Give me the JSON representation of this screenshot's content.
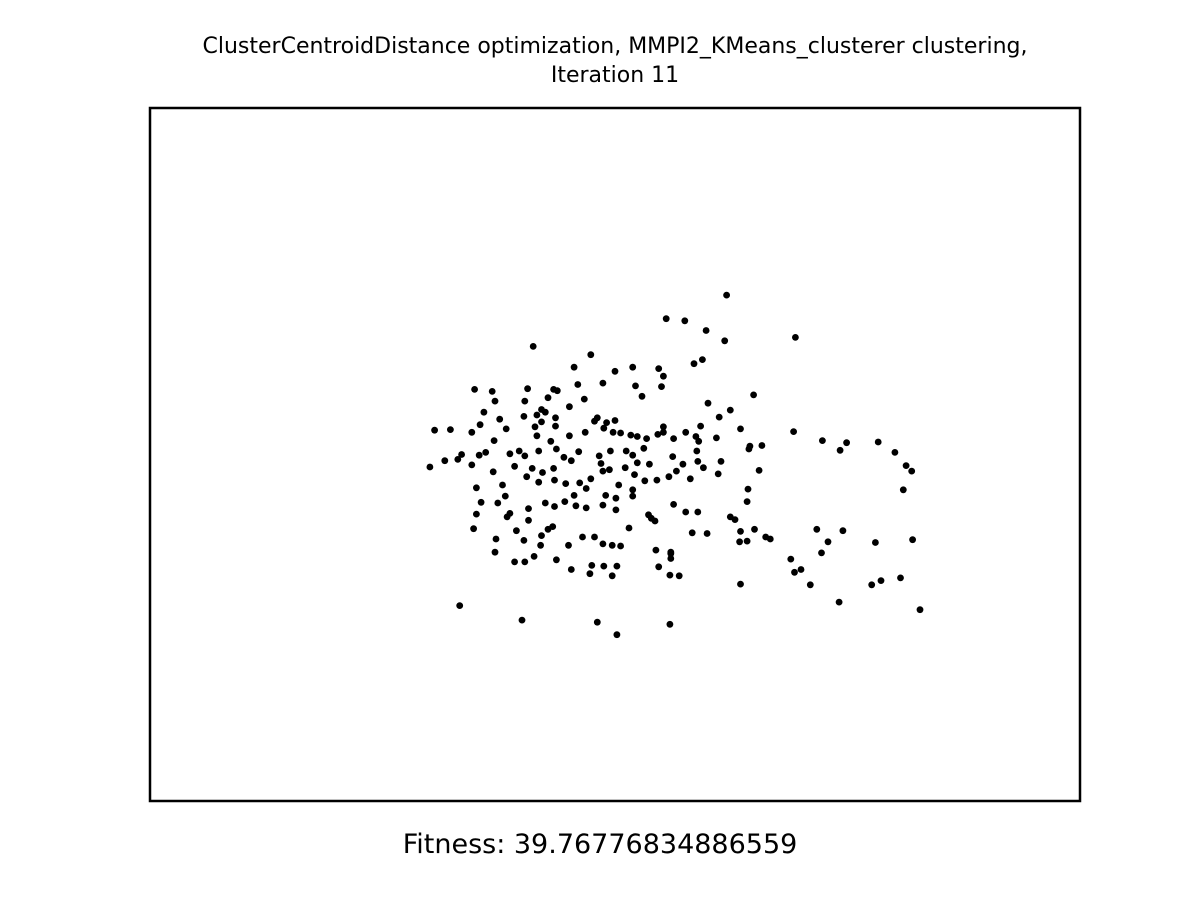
{
  "chart_data": {
    "type": "scatter",
    "title": "ClusterCentroidDistance optimization, MMPI2_KMeans_clusterer clustering,\nIteration 11",
    "xlabel": "",
    "ylabel": "",
    "grid": false,
    "axes_ticks": false,
    "footer": "Fitness: 39.76776834886559",
    "marker_color": "#000000",
    "xlim": [
      0,
      1
    ],
    "ylim": [
      0,
      1
    ],
    "points": [
      [
        0.62,
        0.73
      ],
      [
        0.555,
        0.696
      ],
      [
        0.575,
        0.693
      ],
      [
        0.694,
        0.669
      ],
      [
        0.412,
        0.656
      ],
      [
        0.598,
        0.679
      ],
      [
        0.618,
        0.664
      ],
      [
        0.594,
        0.637
      ],
      [
        0.474,
        0.644
      ],
      [
        0.585,
        0.631
      ],
      [
        0.552,
        0.613
      ],
      [
        0.519,
        0.626
      ],
      [
        0.547,
        0.624
      ],
      [
        0.487,
        0.603
      ],
      [
        0.5,
        0.62
      ],
      [
        0.456,
        0.626
      ],
      [
        0.522,
        0.599
      ],
      [
        0.438,
        0.592
      ],
      [
        0.434,
        0.594
      ],
      [
        0.46,
        0.601
      ],
      [
        0.368,
        0.591
      ],
      [
        0.349,
        0.594
      ],
      [
        0.371,
        0.577
      ],
      [
        0.406,
        0.595
      ],
      [
        0.403,
        0.577
      ],
      [
        0.428,
        0.582
      ],
      [
        0.451,
        0.569
      ],
      [
        0.467,
        0.58
      ],
      [
        0.55,
        0.598
      ],
      [
        0.529,
        0.584
      ],
      [
        0.649,
        0.586
      ],
      [
        0.624,
        0.564
      ],
      [
        0.6,
        0.574
      ],
      [
        0.612,
        0.554
      ],
      [
        0.592,
        0.541
      ],
      [
        0.635,
        0.537
      ],
      [
        0.587,
        0.526
      ],
      [
        0.552,
        0.54
      ],
      [
        0.5,
        0.549
      ],
      [
        0.491,
        0.546
      ],
      [
        0.481,
        0.553
      ],
      [
        0.436,
        0.553
      ],
      [
        0.421,
        0.565
      ],
      [
        0.416,
        0.557
      ],
      [
        0.425,
        0.561
      ],
      [
        0.421,
        0.547
      ],
      [
        0.414,
        0.54
      ],
      [
        0.402,
        0.555
      ],
      [
        0.383,
        0.537
      ],
      [
        0.376,
        0.551
      ],
      [
        0.359,
        0.561
      ],
      [
        0.346,
        0.532
      ],
      [
        0.323,
        0.536
      ],
      [
        0.306,
        0.535
      ],
      [
        0.355,
        0.543
      ],
      [
        0.37,
        0.52
      ],
      [
        0.416,
        0.527
      ],
      [
        0.431,
        0.519
      ],
      [
        0.436,
        0.541
      ],
      [
        0.451,
        0.527
      ],
      [
        0.468,
        0.532
      ],
      [
        0.478,
        0.548
      ],
      [
        0.488,
        0.538
      ],
      [
        0.498,
        0.532
      ],
      [
        0.506,
        0.531
      ],
      [
        0.517,
        0.528
      ],
      [
        0.524,
        0.526
      ],
      [
        0.534,
        0.523
      ],
      [
        0.546,
        0.529
      ],
      [
        0.552,
        0.532
      ],
      [
        0.563,
        0.523
      ],
      [
        0.576,
        0.532
      ],
      [
        0.59,
        0.519
      ],
      [
        0.609,
        0.524
      ],
      [
        0.645,
        0.512
      ],
      [
        0.658,
        0.513
      ],
      [
        0.644,
        0.508
      ],
      [
        0.692,
        0.533
      ],
      [
        0.723,
        0.52
      ],
      [
        0.749,
        0.517
      ],
      [
        0.783,
        0.518
      ],
      [
        0.801,
        0.503
      ],
      [
        0.588,
        0.505
      ],
      [
        0.562,
        0.497
      ],
      [
        0.531,
        0.509
      ],
      [
        0.519,
        0.499
      ],
      [
        0.512,
        0.505
      ],
      [
        0.495,
        0.505
      ],
      [
        0.483,
        0.498
      ],
      [
        0.461,
        0.504
      ],
      [
        0.445,
        0.496
      ],
      [
        0.437,
        0.508
      ],
      [
        0.418,
        0.505
      ],
      [
        0.403,
        0.498
      ],
      [
        0.397,
        0.505
      ],
      [
        0.387,
        0.501
      ],
      [
        0.361,
        0.503
      ],
      [
        0.354,
        0.499
      ],
      [
        0.335,
        0.5
      ],
      [
        0.317,
        0.491
      ],
      [
        0.346,
        0.485
      ],
      [
        0.369,
        0.475
      ],
      [
        0.392,
        0.483
      ],
      [
        0.411,
        0.48
      ],
      [
        0.422,
        0.474
      ],
      [
        0.434,
        0.48
      ],
      [
        0.453,
        0.491
      ],
      [
        0.485,
        0.487
      ],
      [
        0.494,
        0.478
      ],
      [
        0.511,
        0.481
      ],
      [
        0.524,
        0.488
      ],
      [
        0.537,
        0.486
      ],
      [
        0.573,
        0.486
      ],
      [
        0.589,
        0.49
      ],
      [
        0.614,
        0.49
      ],
      [
        0.611,
        0.472
      ],
      [
        0.655,
        0.477
      ],
      [
        0.643,
        0.45
      ],
      [
        0.742,
        0.506
      ],
      [
        0.813,
        0.484
      ],
      [
        0.819,
        0.476
      ],
      [
        0.81,
        0.449
      ],
      [
        0.301,
        0.482
      ],
      [
        0.331,
        0.493
      ],
      [
        0.351,
        0.452
      ],
      [
        0.379,
        0.456
      ],
      [
        0.405,
        0.468
      ],
      [
        0.418,
        0.46
      ],
      [
        0.435,
        0.463
      ],
      [
        0.447,
        0.458
      ],
      [
        0.462,
        0.459
      ],
      [
        0.474,
        0.465
      ],
      [
        0.487,
        0.476
      ],
      [
        0.504,
        0.456
      ],
      [
        0.521,
        0.471
      ],
      [
        0.532,
        0.462
      ],
      [
        0.545,
        0.463
      ],
      [
        0.558,
        0.468
      ],
      [
        0.566,
        0.476
      ],
      [
        0.581,
        0.465
      ],
      [
        0.595,
        0.481
      ],
      [
        0.519,
        0.449
      ],
      [
        0.456,
        0.441
      ],
      [
        0.469,
        0.451
      ],
      [
        0.49,
        0.441
      ],
      [
        0.501,
        0.437
      ],
      [
        0.374,
        0.43
      ],
      [
        0.382,
        0.44
      ],
      [
        0.387,
        0.415
      ],
      [
        0.407,
        0.422
      ],
      [
        0.425,
        0.43
      ],
      [
        0.435,
        0.425
      ],
      [
        0.446,
        0.432
      ],
      [
        0.458,
        0.426
      ],
      [
        0.469,
        0.423
      ],
      [
        0.487,
        0.427
      ],
      [
        0.501,
        0.42
      ],
      [
        0.519,
        0.44
      ],
      [
        0.536,
        0.413
      ],
      [
        0.539,
        0.408
      ],
      [
        0.543,
        0.404
      ],
      [
        0.563,
        0.428
      ],
      [
        0.576,
        0.417
      ],
      [
        0.589,
        0.417
      ],
      [
        0.433,
        0.396
      ],
      [
        0.407,
        0.405
      ],
      [
        0.384,
        0.41
      ],
      [
        0.394,
        0.39
      ],
      [
        0.372,
        0.378
      ],
      [
        0.402,
        0.376
      ],
      [
        0.421,
        0.383
      ],
      [
        0.428,
        0.392
      ],
      [
        0.42,
        0.369
      ],
      [
        0.45,
        0.369
      ],
      [
        0.465,
        0.381
      ],
      [
        0.478,
        0.381
      ],
      [
        0.487,
        0.371
      ],
      [
        0.497,
        0.369
      ],
      [
        0.506,
        0.368
      ],
      [
        0.544,
        0.362
      ],
      [
        0.56,
        0.357
      ],
      [
        0.56,
        0.35
      ],
      [
        0.583,
        0.387
      ],
      [
        0.599,
        0.386
      ],
      [
        0.351,
        0.414
      ],
      [
        0.356,
        0.431
      ],
      [
        0.348,
        0.393
      ],
      [
        0.371,
        0.359
      ],
      [
        0.392,
        0.345
      ],
      [
        0.403,
        0.345
      ],
      [
        0.413,
        0.353
      ],
      [
        0.437,
        0.348
      ],
      [
        0.453,
        0.334
      ],
      [
        0.475,
        0.34
      ],
      [
        0.488,
        0.339
      ],
      [
        0.473,
        0.328
      ],
      [
        0.497,
        0.325
      ],
      [
        0.502,
        0.339
      ],
      [
        0.515,
        0.394
      ],
      [
        0.559,
        0.326
      ],
      [
        0.56,
        0.359
      ],
      [
        0.547,
        0.338
      ],
      [
        0.569,
        0.325
      ],
      [
        0.634,
        0.374
      ],
      [
        0.642,
        0.375
      ],
      [
        0.662,
        0.381
      ],
      [
        0.717,
        0.392
      ],
      [
        0.745,
        0.39
      ],
      [
        0.78,
        0.373
      ],
      [
        0.722,
        0.358
      ],
      [
        0.635,
        0.313
      ],
      [
        0.693,
        0.33
      ],
      [
        0.7,
        0.334
      ],
      [
        0.71,
        0.312
      ],
      [
        0.776,
        0.312
      ],
      [
        0.786,
        0.318
      ],
      [
        0.807,
        0.322
      ],
      [
        0.82,
        0.377
      ],
      [
        0.689,
        0.349
      ],
      [
        0.729,
        0.374
      ],
      [
        0.65,
        0.392
      ],
      [
        0.629,
        0.406
      ],
      [
        0.333,
        0.282
      ],
      [
        0.4,
        0.261
      ],
      [
        0.481,
        0.258
      ],
      [
        0.502,
        0.24
      ],
      [
        0.559,
        0.255
      ],
      [
        0.741,
        0.287
      ],
      [
        0.828,
        0.276
      ],
      [
        0.635,
        0.389
      ],
      [
        0.642,
        0.432
      ],
      [
        0.667,
        0.378
      ],
      [
        0.624,
        0.41
      ]
    ]
  }
}
